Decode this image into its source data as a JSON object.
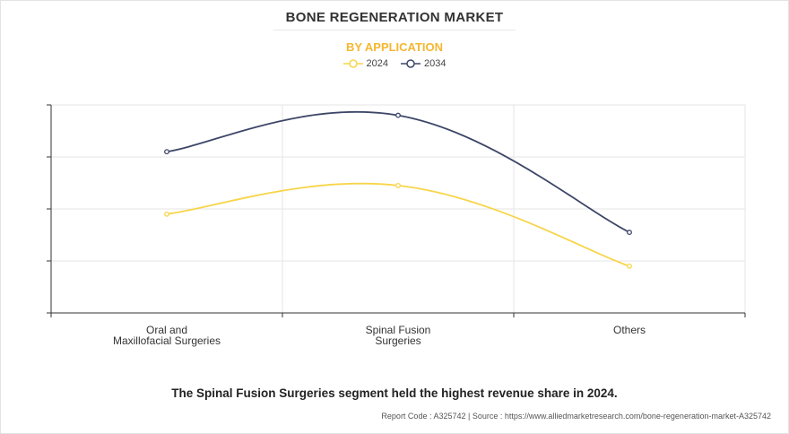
{
  "title": "BONE REGENERATION MARKET",
  "subtitle": "BY APPLICATION",
  "caption": "The Spinal Fusion Surgeries segment held the highest revenue share in 2024.",
  "source": "Report Code : A325742  |  Source : https://www.alliedmarketresearch.com/bone-regeneration-market-A325742",
  "colors": {
    "series_2024": "#f7d54a",
    "series_2034": "#3d4668",
    "accent": "#f5b731",
    "grid": "#e6e6e6",
    "axis": "#333333"
  },
  "legend": [
    {
      "label": "2024",
      "color": "#f7d54a"
    },
    {
      "label": "2034",
      "color": "#3d4668"
    }
  ],
  "chart_data": {
    "type": "line",
    "title": "BONE REGENERATION MARKET",
    "subtitle": "BY APPLICATION",
    "categories": [
      [
        "Oral and",
        "Maxillofacial Surgeries"
      ],
      [
        "Spinal Fusion",
        "Surgeries"
      ],
      [
        "Others"
      ]
    ],
    "series": [
      {
        "name": "2024",
        "values": [
          1.9,
          2.45,
          0.9
        ]
      },
      {
        "name": "2034",
        "values": [
          3.1,
          3.8,
          1.55
        ]
      }
    ],
    "ylim": [
      0,
      4
    ],
    "grid": true,
    "legend_position": "top-center",
    "xlabel": "",
    "ylabel": ""
  }
}
